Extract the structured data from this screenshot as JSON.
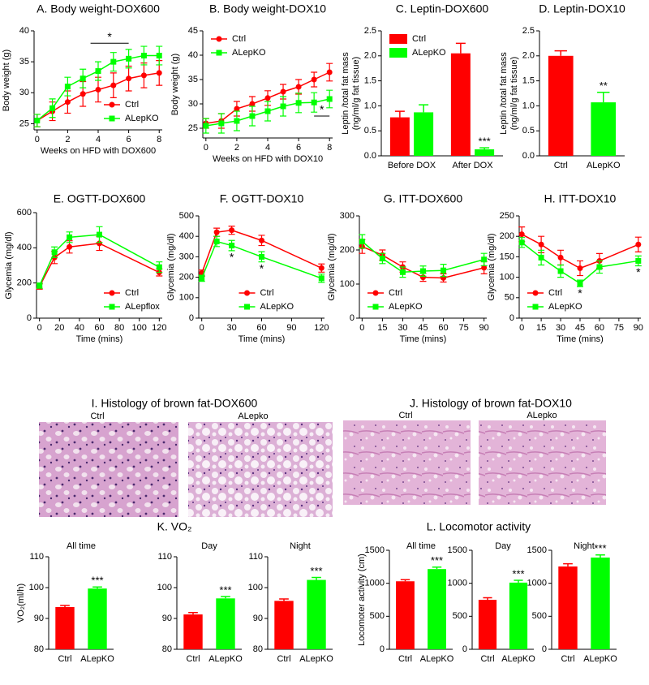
{
  "chart_data": [
    {
      "type": "line",
      "title": "A. Body weight-DOX600",
      "xlabel": "Weeks on HFD with DOX600",
      "ylabel": "Body weight (g)",
      "x": [
        0,
        1,
        2,
        3,
        4,
        5,
        6,
        7,
        8
      ],
      "xlim": [
        -0.2,
        8.2
      ],
      "xticks": [
        0,
        2,
        4,
        6,
        8
      ],
      "ylim": [
        24,
        40
      ],
      "yticks": [
        25,
        30,
        35,
        40
      ],
      "legend": "lower right",
      "series": [
        {
          "name": "Ctrl",
          "color": "#ff0000",
          "marker": "circle",
          "values": [
            25.5,
            27,
            28.5,
            29.8,
            30.5,
            31.2,
            32.3,
            32.8,
            33.2
          ],
          "errors": [
            1,
            1.5,
            1.8,
            2,
            2,
            2,
            2,
            2,
            2
          ]
        },
        {
          "name": "ALepKO",
          "color": "#00ff00",
          "marker": "square",
          "values": [
            25.5,
            27.5,
            31,
            32.3,
            33.5,
            35,
            35.5,
            36,
            36
          ],
          "errors": [
            1,
            1.5,
            1.5,
            1.5,
            1.5,
            1.5,
            1.5,
            1.5,
            1.5
          ]
        }
      ],
      "annotations": [
        {
          "text": "*",
          "x": [
            3.5,
            6
          ],
          "y": 38
        }
      ]
    },
    {
      "type": "line",
      "title": "B. Body weight-DOX10",
      "xlabel": "Weeks on HFD with DOX10",
      "ylabel": "Body weight (g)",
      "x": [
        0,
        1,
        2,
        3,
        4,
        5,
        6,
        7,
        8
      ],
      "xlim": [
        -0.2,
        8.2
      ],
      "xticks": [
        0,
        2,
        4,
        6,
        8
      ],
      "ylim": [
        23,
        45
      ],
      "yticks": [
        25,
        30,
        35,
        40,
        45
      ],
      "legend": "upper left",
      "series": [
        {
          "name": "Ctrl",
          "color": "#ff0000",
          "marker": "circle",
          "values": [
            26,
            26.5,
            29,
            30,
            31.2,
            32.5,
            33.5,
            35,
            36.5
          ],
          "errors": [
            1,
            1.5,
            1.5,
            1.5,
            1.5,
            1.5,
            1.5,
            1.5,
            1.8
          ]
        },
        {
          "name": "ALepKO",
          "color": "#00ff00",
          "marker": "square",
          "values": [
            25.5,
            26,
            26.5,
            27.5,
            28.5,
            29.5,
            30.2,
            30.3,
            31
          ],
          "errors": [
            1.5,
            2,
            2,
            2,
            2,
            2,
            2,
            2,
            1.8
          ]
        }
      ],
      "annotations": [
        {
          "text": "*",
          "x": [
            7,
            8
          ],
          "y": 27.5
        }
      ]
    },
    {
      "type": "bar",
      "title": "C. Leptin-DOX600",
      "ylabel": [
        "Leptin /total fat mass",
        "(ng/ml/g fat tissue)"
      ],
      "categories": [
        "Before DOX",
        "After DOX"
      ],
      "ylim": [
        0,
        2.5
      ],
      "yticks": [
        {
          "value": 0,
          "label": "0.0"
        },
        0.5,
        {
          "value": 1,
          "label": "1.0"
        },
        1.5,
        {
          "value": 2,
          "label": "2.0"
        },
        2.5
      ],
      "legend": "upper left",
      "series": [
        {
          "name": "Ctrl",
          "color": "#ff0000",
          "values": [
            0.77,
            2.05
          ],
          "errors": [
            0.12,
            0.2
          ]
        },
        {
          "name": "ALepKO",
          "color": "#00ff00",
          "values": [
            0.87,
            0.13
          ],
          "errors": [
            0.15,
            0.03
          ]
        }
      ],
      "annotations": [
        {
          "text": "***",
          "category": "After DOX",
          "series": "ALepKO"
        }
      ]
    },
    {
      "type": "bar",
      "title": "D. Leptin-DOX10",
      "ylabel": [
        "Leptin /total fat mass",
        "(ng/ml/g fat tissue)"
      ],
      "categories": [
        "Ctrl",
        "ALepKO"
      ],
      "ylim": [
        0,
        2.5
      ],
      "yticks": [
        {
          "value": 0,
          "label": "0.0"
        },
        0.5,
        {
          "value": 1,
          "label": "1.0"
        },
        1.5,
        {
          "value": 2,
          "label": "2.0"
        },
        2.5
      ],
      "values": [
        2.0,
        1.07
      ],
      "errors": [
        0.1,
        0.2
      ],
      "colors": [
        "#ff0000",
        "#00ff00"
      ],
      "annotations": [
        {
          "text": "**",
          "category": "ALepKO"
        }
      ]
    },
    {
      "type": "line",
      "title": "E. OGTT-DOX600",
      "xlabel": "Time (mins)",
      "ylabel": "Glycemia (mg/dl)",
      "x": [
        0,
        15,
        30,
        60,
        120
      ],
      "xlim": [
        -3,
        123
      ],
      "xticks": [
        0,
        20,
        40,
        60,
        80,
        100,
        120
      ],
      "ylim": [
        0,
        600
      ],
      "yticks": [
        0,
        200,
        400,
        600
      ],
      "legend": "lower right",
      "series": [
        {
          "name": "Ctrl",
          "color": "#ff0000",
          "marker": "circle",
          "values": [
            180,
            345,
            405,
            425,
            260
          ],
          "errors": [
            15,
            35,
            35,
            40,
            20
          ]
        },
        {
          "name": "ALepflox",
          "color": "#00ff00",
          "marker": "square",
          "values": [
            185,
            375,
            460,
            475,
            290
          ],
          "errors": [
            15,
            30,
            30,
            45,
            30
          ]
        }
      ]
    },
    {
      "type": "line",
      "title": "F. OGTT-DOX10",
      "xlabel": "Time (mins)",
      "ylabel": "Glycemia (mg/dl)",
      "x": [
        0,
        15,
        30,
        60,
        120
      ],
      "xlim": [
        -3,
        123
      ],
      "xticks": [
        0,
        30,
        60,
        90,
        120
      ],
      "ylim": [
        0,
        500
      ],
      "yticks": [
        0,
        100,
        200,
        300,
        400,
        500
      ],
      "legend": "lower center",
      "series": [
        {
          "name": "Ctrl",
          "color": "#ff0000",
          "marker": "circle",
          "values": [
            220,
            420,
            430,
            380,
            245
          ],
          "errors": [
            15,
            20,
            20,
            25,
            20
          ]
        },
        {
          "name": "ALepKO",
          "color": "#00ff00",
          "marker": "square",
          "values": [
            195,
            375,
            355,
            300,
            195
          ],
          "errors": [
            15,
            25,
            25,
            25,
            20
          ]
        }
      ],
      "annotations": [
        {
          "text": "*",
          "x": 30,
          "series": "ALepKO"
        },
        {
          "text": "*",
          "x": 60,
          "series": "ALepKO"
        }
      ]
    },
    {
      "type": "line",
      "title": "G. ITT-DOX600",
      "xlabel": "Time (mins)",
      "ylabel": "Glycemia (mg/dl)",
      "x": [
        0,
        15,
        30,
        45,
        60,
        90
      ],
      "xlim": [
        -2,
        92
      ],
      "xticks": [
        0,
        15,
        30,
        45,
        60,
        75,
        90
      ],
      "ylim": [
        0,
        300
      ],
      "yticks": [
        0,
        100,
        200,
        300
      ],
      "legend": "lower left",
      "series": [
        {
          "name": "Ctrl",
          "color": "#ff0000",
          "marker": "circle",
          "values": [
            210,
            185,
            150,
            120,
            118,
            148
          ],
          "errors": [
            20,
            15,
            15,
            12,
            12,
            18
          ]
        },
        {
          "name": "ALepKO",
          "color": "#00ff00",
          "marker": "square",
          "values": [
            225,
            175,
            135,
            138,
            140,
            172
          ],
          "errors": [
            20,
            15,
            15,
            15,
            18,
            18
          ]
        }
      ]
    },
    {
      "type": "line",
      "title": "H. ITT-DOX10",
      "xlabel": "Time (mins)",
      "ylabel": "Glycemia (mg/dl)",
      "x": [
        0,
        15,
        30,
        45,
        60,
        90
      ],
      "xlim": [
        -2,
        92
      ],
      "xticks": [
        0,
        15,
        30,
        45,
        60,
        75,
        90
      ],
      "ylim": [
        0,
        250
      ],
      "yticks": [
        0,
        50,
        100,
        150,
        200,
        250
      ],
      "legend": "lower left",
      "series": [
        {
          "name": "Ctrl",
          "color": "#ff0000",
          "marker": "circle",
          "values": [
            205,
            180,
            148,
            122,
            140,
            180
          ],
          "errors": [
            18,
            20,
            18,
            18,
            18,
            18
          ]
        },
        {
          "name": "ALepKO",
          "color": "#00ff00",
          "marker": "square",
          "values": [
            185,
            148,
            115,
            85,
            125,
            140
          ],
          "errors": [
            12,
            18,
            15,
            8,
            15,
            12
          ]
        }
      ],
      "annotations": [
        {
          "text": "*",
          "x": 45,
          "series": "ALepKO"
        },
        {
          "text": "*",
          "x": 90,
          "series": "ALepKO"
        }
      ]
    },
    {
      "type": "bar",
      "title": "All time",
      "ylabel": "VO₂(ml/h)",
      "categories": [
        "Ctrl",
        "ALepKO"
      ],
      "ylim": [
        80,
        110
      ],
      "yticks": [
        80,
        90,
        100,
        110
      ],
      "values": [
        93.7,
        99.7
      ],
      "errors": [
        0.5,
        0.5
      ],
      "colors": [
        "#ff0000",
        "#00ff00"
      ],
      "annotations": [
        {
          "text": "***",
          "category": "ALepKO"
        }
      ]
    },
    {
      "type": "bar",
      "title": "Day",
      "categories": [
        "Ctrl",
        "ALepKO"
      ],
      "ylim": [
        80,
        110
      ],
      "yticks": [
        80,
        90,
        100,
        110
      ],
      "values": [
        91.3,
        96.5
      ],
      "errors": [
        0.6,
        0.6
      ],
      "colors": [
        "#ff0000",
        "#00ff00"
      ],
      "annotations": [
        {
          "text": "***",
          "category": "ALepKO"
        }
      ]
    },
    {
      "type": "bar",
      "title": "Night",
      "categories": [
        "Ctrl",
        "ALepKO"
      ],
      "ylim": [
        80,
        110
      ],
      "yticks": [
        80,
        90,
        100,
        110
      ],
      "values": [
        95.7,
        102.5
      ],
      "errors": [
        0.6,
        0.8
      ],
      "colors": [
        "#ff0000",
        "#00ff00"
      ],
      "annotations": [
        {
          "text": "***",
          "category": "ALepKO"
        }
      ]
    },
    {
      "type": "bar",
      "title": "All time",
      "ylabel": "Locomoter activity (cm)",
      "categories": [
        "Ctrl",
        "ALepKO"
      ],
      "ylim": [
        0,
        1500
      ],
      "yticks": [
        0,
        500,
        1000,
        1500
      ],
      "values": [
        1030,
        1215
      ],
      "errors": [
        25,
        30
      ],
      "colors": [
        "#ff0000",
        "#00ff00"
      ],
      "annotations": [
        {
          "text": "***",
          "category": "ALepKO"
        }
      ]
    },
    {
      "type": "bar",
      "title": "Day",
      "categories": [
        "Ctrl",
        "ALepKO"
      ],
      "ylim": [
        0,
        1500
      ],
      "yticks": [
        0,
        500,
        1000,
        1500
      ],
      "values": [
        750,
        1010
      ],
      "errors": [
        30,
        35
      ],
      "colors": [
        "#ff0000",
        "#00ff00"
      ],
      "annotations": [
        {
          "text": "***",
          "category": "ALepKO"
        }
      ]
    },
    {
      "type": "bar",
      "title": "Night",
      "categories": [
        "Ctrl",
        "ALepKO"
      ],
      "ylim": [
        0,
        1500
      ],
      "yticks": [
        0,
        500,
        1000,
        1500
      ],
      "values": [
        1255,
        1390
      ],
      "errors": [
        40,
        40
      ],
      "colors": [
        "#ff0000",
        "#00ff00"
      ],
      "annotations": [
        {
          "text": "***",
          "category": "ALepKO"
        }
      ]
    }
  ],
  "group_titles": [
    "K. VO₂",
    "L. Locomotor activity"
  ],
  "histology": [
    {
      "title": "I. Histology of brown fat-DOX600",
      "labels": [
        "Ctrl",
        "ALepko"
      ]
    },
    {
      "title": "J. Histology of brown fat-DOX10",
      "labels": [
        "Ctrl",
        "ALepko"
      ]
    }
  ]
}
